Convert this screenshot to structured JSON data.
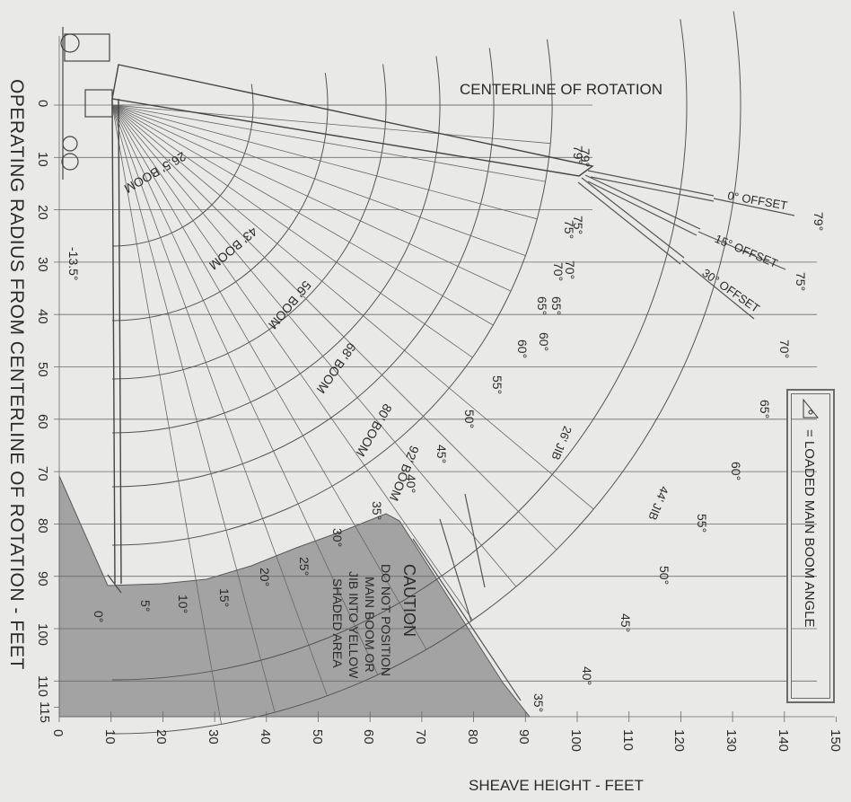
{
  "title_top": "CENTERLINE OF ROTATION",
  "side_title": "OPERATING RADIUS FROM CENTERLINE OF ROTATION - FEET",
  "x_axis_label": "SHEAVE HEIGHT - FEET",
  "legend": "= LOADED MAIN BOOM ANGLE",
  "caution": {
    "heading": "CAUTION",
    "lines": [
      "DO NOT POSITION",
      "MAIN BOOM OR",
      "JIB INTO YELLOW",
      "SHADED AREA"
    ]
  },
  "x_ticks": [
    "0",
    "10",
    "20",
    "30",
    "40",
    "50",
    "60",
    "70",
    "80",
    "90",
    "100",
    "110",
    "120",
    "130",
    "140",
    "150"
  ],
  "y_ticks": [
    "0",
    "10",
    "20",
    "30",
    "40",
    "50",
    "60",
    "70",
    "80",
    "90",
    "100",
    "110",
    "115"
  ],
  "boom_lengths": [
    "26.5' BOOM",
    "43' BOOM",
    "56' BOOM",
    "68' BOOM",
    "80' BOOM",
    "92' BOOM"
  ],
  "boom_angle_labels": [
    "0°",
    "5°",
    "10°",
    "15°",
    "20°",
    "25°",
    "30°",
    "35°",
    "40°",
    "45°",
    "50°",
    "55°",
    "60°",
    "65°",
    "70°",
    "75°",
    "79°"
  ],
  "minus_angle": "-13.5°",
  "jib_labels": [
    "26' JIB",
    "44' JIB"
  ],
  "offset_labels": [
    "0° OFFSET",
    "15° OFFSET",
    "30° OFFSET"
  ],
  "outer_angle_labels": [
    "79°",
    "75°",
    "70°",
    "65°",
    "60°",
    "55°",
    "50°",
    "45°",
    "40°",
    "35°"
  ],
  "offset_tip_labels": [
    "79°",
    "75°",
    "70°",
    "65°",
    "60°",
    "55°",
    "50°",
    "45°",
    "40°",
    "35°"
  ],
  "colors": {
    "shade": "#a3a3a3",
    "line": "#4a4a4a",
    "bg": "#e9e9e7"
  }
}
